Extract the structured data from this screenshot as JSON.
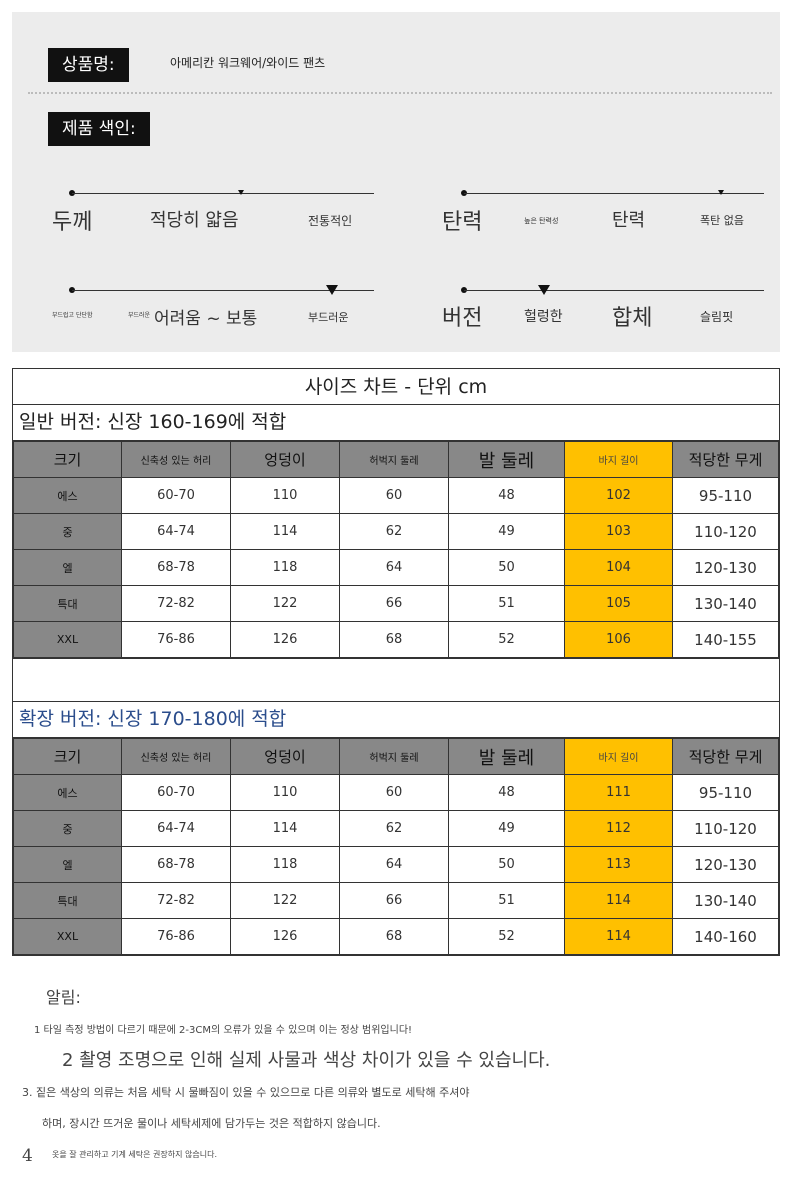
{
  "product": {
    "name_label": "상품명:",
    "name_value": "아메리칸 워크웨어/와이드 팬츠",
    "color_label": "제품 색인:"
  },
  "scales": {
    "thickness": {
      "label": "두께",
      "options": [
        "적당히 얇음",
        "전통적인"
      ]
    },
    "elasticity": {
      "label": "탄력",
      "options": [
        "높은 탄력성",
        "탄력",
        "폭탄 없음"
      ]
    },
    "softness": {
      "options": [
        "부드럽고 단단함",
        "부드러운",
        "어려움 ~ 보통",
        "부드러운"
      ]
    },
    "fit": {
      "label": "버전",
      "options": [
        "헐렁한",
        "합체",
        "슬림핏"
      ]
    }
  },
  "chart": {
    "title": "사이즈 차트 - 단위 cm",
    "headers": [
      "크기",
      "신축성 있는 허리",
      "엉덩이",
      "허벅지 둘레",
      "발 둘레",
      "바지 길이",
      "적당한 무게"
    ],
    "regular": {
      "title": "일반 버전: 신장 160-169에 적합",
      "rows": [
        [
          "에스",
          "60-70",
          "110",
          "60",
          "48",
          "102",
          "95-110"
        ],
        [
          "중",
          "64-74",
          "114",
          "62",
          "49",
          "103",
          "110-120"
        ],
        [
          "엘",
          "68-78",
          "118",
          "64",
          "50",
          "104",
          "120-130"
        ],
        [
          "특대",
          "72-82",
          "122",
          "66",
          "51",
          "105",
          "130-140"
        ],
        [
          "XXL",
          "76-86",
          "126",
          "68",
          "52",
          "106",
          "140-155"
        ]
      ]
    },
    "extended": {
      "title": "확장 버전: 신장 170-180에 적합",
      "rows": [
        [
          "에스",
          "60-70",
          "110",
          "60",
          "48",
          "111",
          "95-110"
        ],
        [
          "중",
          "64-74",
          "114",
          "62",
          "49",
          "112",
          "110-120"
        ],
        [
          "엘",
          "68-78",
          "118",
          "64",
          "50",
          "113",
          "120-130"
        ],
        [
          "특대",
          "72-82",
          "122",
          "66",
          "51",
          "114",
          "130-140"
        ],
        [
          "XXL",
          "76-86",
          "126",
          "68",
          "52",
          "114",
          "140-160"
        ]
      ]
    }
  },
  "notice": {
    "title": "알림:",
    "lines": [
      "1 타일 측정 방법이 다르기 때문에 2-3CM의 오류가 있을 수 있으며 이는 정상 범위입니다!",
      "2 촬영 조명으로 인해 실제 사물과 색상 차이가 있을 수 있습니다.",
      "3. 짙은 색상의 의류는 처음 세탁 시 물빠짐이 있을 수 있으므로 다른 의류와 별도로 세탁해 주셔야",
      "하며, 장시간 뜨거운 물이나 세탁세제에 담가두는 것은 적합하지 않습니다.",
      "4",
      "옷을 잘 관리하고 기계 세탁은 권장하지 않습니다."
    ]
  },
  "colors": {
    "accent_yellow": "#ffc000",
    "header_gray": "#888888",
    "title_blue": "#2b4d8c"
  }
}
